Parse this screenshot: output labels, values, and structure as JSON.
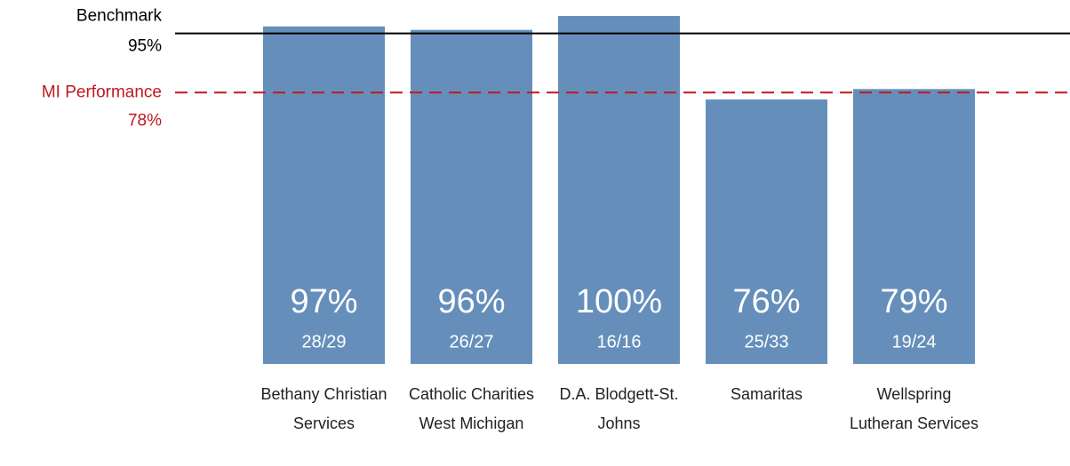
{
  "chart_data": {
    "type": "bar",
    "categories": [
      "Bethany Christian Services",
      "Catholic Charities West Michigan",
      "D.A. Blodgett-St. Johns",
      "Samaritas",
      "Wellspring Lutheran Services"
    ],
    "values": [
      97,
      96,
      100,
      76,
      79
    ],
    "value_labels": [
      "97%",
      "96%",
      "100%",
      "76%",
      "79%"
    ],
    "counts": [
      "28/29",
      "26/27",
      "16/16",
      "25/33",
      "19/24"
    ],
    "color": "#658fba",
    "ylim": [
      0,
      100
    ],
    "reference_lines": [
      {
        "name": "Benchmark",
        "value": 95,
        "value_label": "95%",
        "color": "#000000",
        "dashed": false
      },
      {
        "name": "MI Performance",
        "value": 78,
        "value_label": "78%",
        "color": "#c0181f",
        "dashed": true
      }
    ]
  }
}
